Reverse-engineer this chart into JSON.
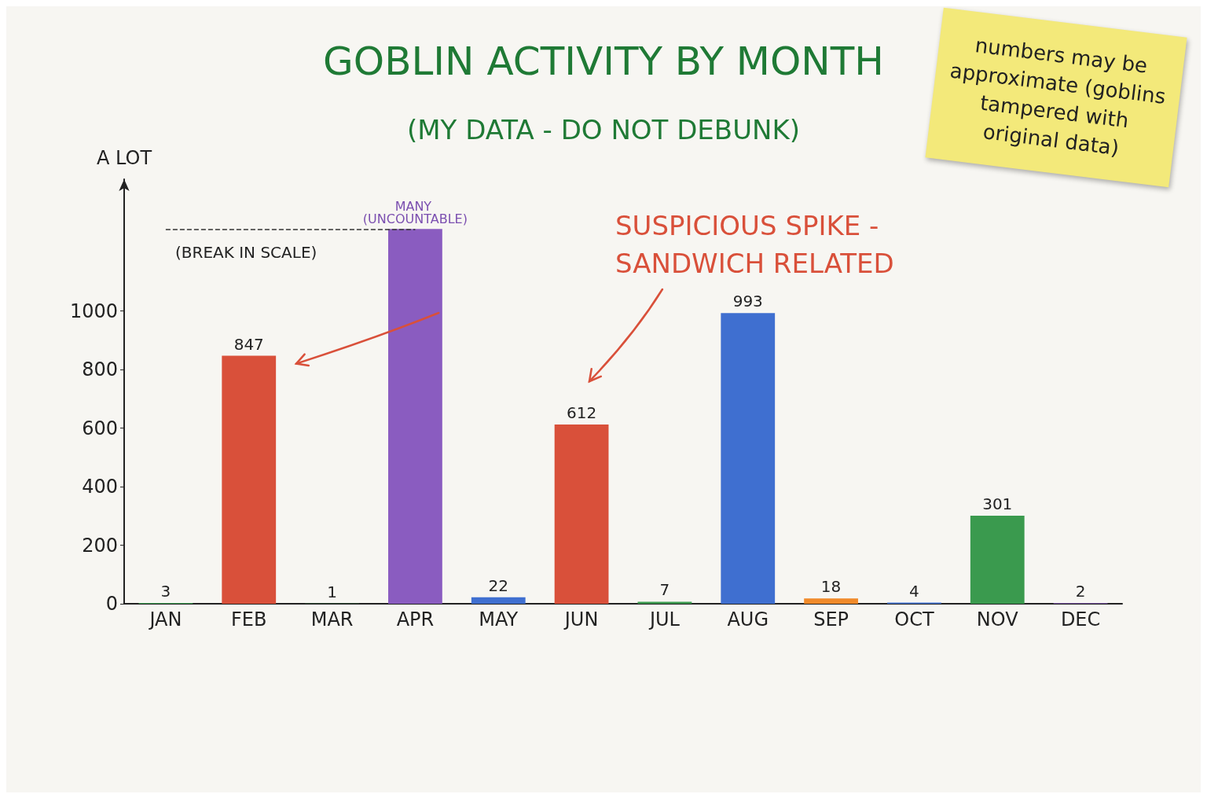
{
  "chart_data": {
    "type": "bar",
    "title": "GOBLIN ACTIVITY BY MONTH",
    "subtitle": "(MY DATA - DO NOT DEBUNK)",
    "ylabel": "A LOT",
    "categories": [
      "JAN",
      "FEB",
      "MAR",
      "APR",
      "MAY",
      "JUN",
      "JUL",
      "AUG",
      "SEP",
      "OCT",
      "NOV",
      "DEC"
    ],
    "values": [
      3,
      847,
      1,
      1280,
      22,
      612,
      7,
      993,
      18,
      4,
      301,
      2
    ],
    "colors": [
      "#3a9a4e",
      "#d9503a",
      "#3a9a4e",
      "#8a5cc0",
      "#3f6fd0",
      "#d9503a",
      "#3a9a4e",
      "#3f6fd0",
      "#f08a2a",
      "#3f6fd0",
      "#3a9a4e",
      "#8a5cc0"
    ],
    "value_labels": [
      "3",
      "847",
      "1",
      "MANY (UNCOUNTABLE)",
      "22",
      "612",
      "7",
      "993",
      "18",
      "4",
      "301",
      "2"
    ],
    "ylim": [
      0,
      1450
    ],
    "yticks": [
      0,
      200,
      400,
      600,
      800,
      1000
    ],
    "ref_lines": [
      {
        "axis": "y",
        "value": 1280,
        "line_style": "dashed",
        "color": "#333333"
      }
    ],
    "annotations": [
      "(BREAK IN SCALE)",
      "SUSPICIOUS SPIKE - SANDWICH RELATED",
      "numbers may be approximate (goblins tampered with original data)"
    ]
  }
}
